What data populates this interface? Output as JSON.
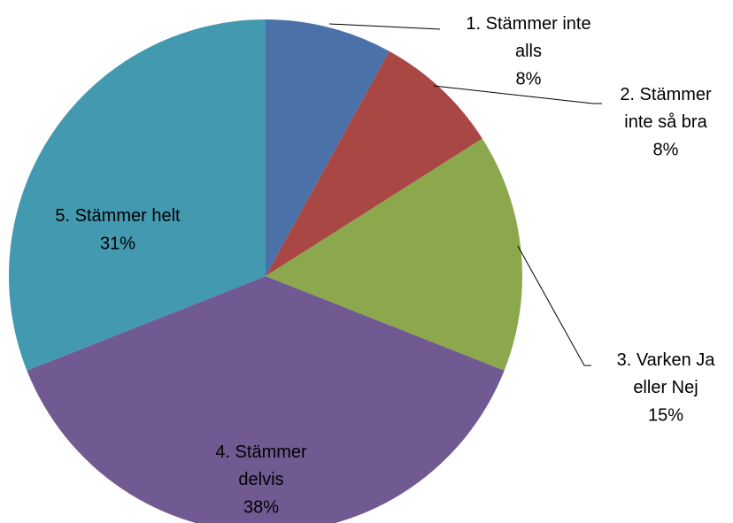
{
  "chart_data": {
    "type": "pie",
    "categories": [
      "1. Stämmer inte alls",
      "2. Stämmer inte så bra",
      "3. Varken Ja eller Nej",
      "4. Stämmer delvis",
      "5. Stämmer helt"
    ],
    "values": [
      8,
      8,
      15,
      38,
      31
    ],
    "value_labels": [
      "8%",
      "8%",
      "15%",
      "38%",
      "31%"
    ],
    "colors": [
      "#4a72a8",
      "#a94744",
      "#8ba94c",
      "#715a92",
      "#4399b0"
    ]
  }
}
